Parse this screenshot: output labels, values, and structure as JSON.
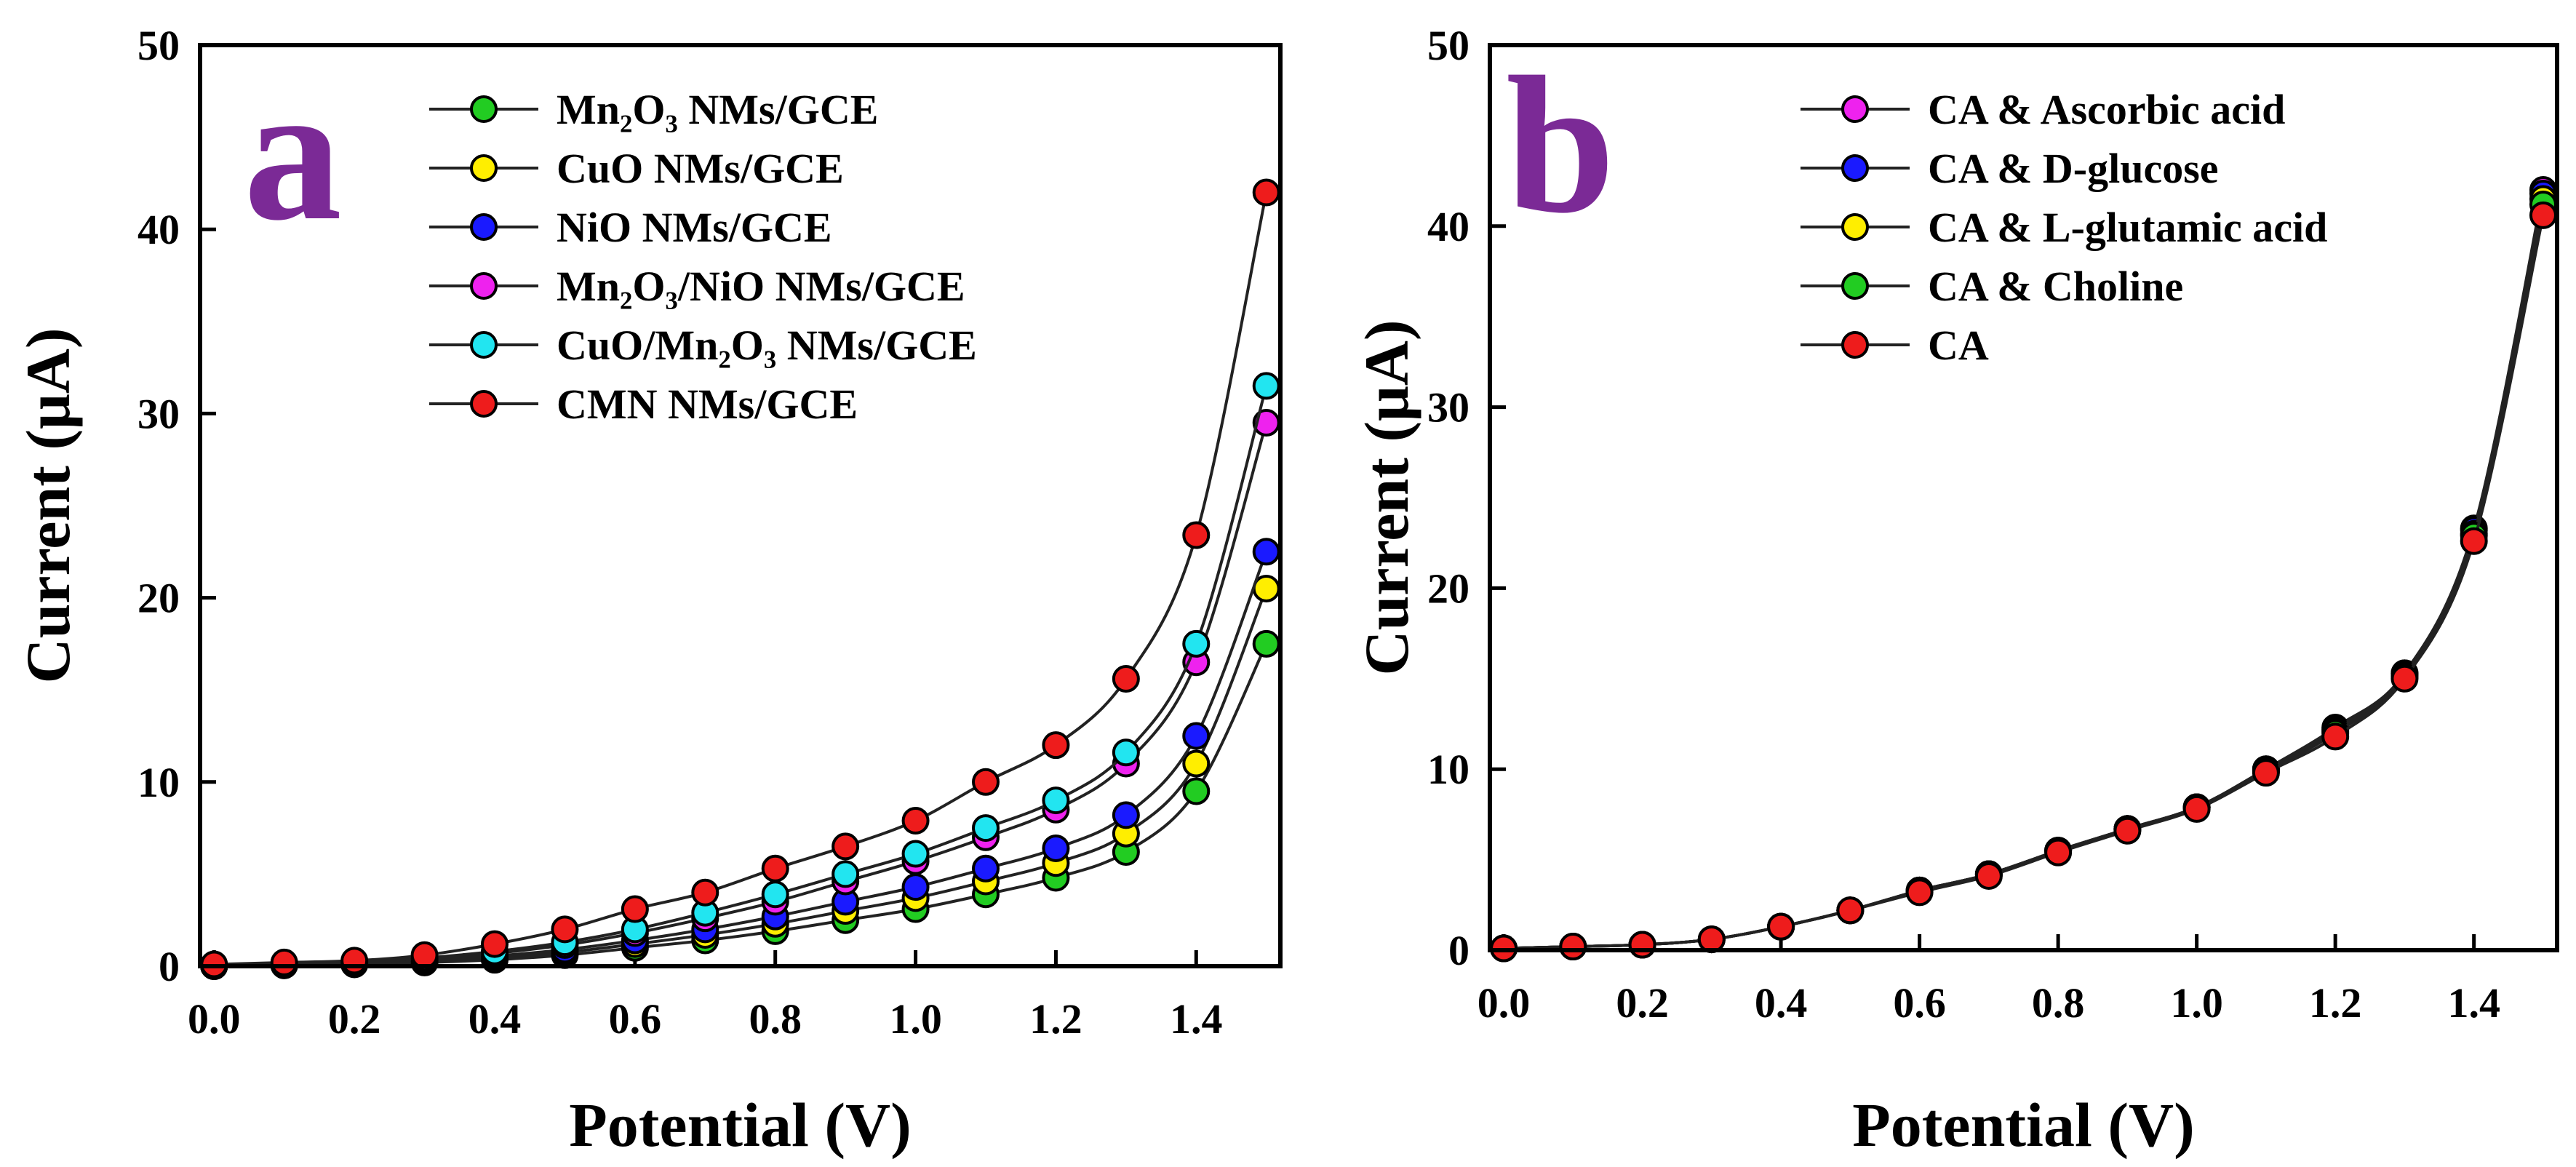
{
  "chart_data": [
    {
      "type": "line",
      "panel_label": "a",
      "xlabel": "Potential (V)",
      "ylabel": "Current (μA)",
      "xlim": [
        -0.02,
        1.52
      ],
      "ylim": [
        0,
        50
      ],
      "xticks": [
        0.0,
        0.2,
        0.4,
        0.6,
        0.8,
        1.0,
        1.2,
        1.4
      ],
      "xtick_labels": [
        "0.0",
        "0.2",
        "0.4",
        "0.6",
        "0.8",
        "1.0",
        "1.2",
        "1.4"
      ],
      "yticks": [
        0,
        10,
        20,
        30,
        40,
        50
      ],
      "ytick_labels": [
        "0",
        "10",
        "20",
        "30",
        "40",
        "50"
      ],
      "legend_position": "top-center",
      "x": [
        0.0,
        0.1,
        0.2,
        0.3,
        0.4,
        0.5,
        0.6,
        0.7,
        0.8,
        0.9,
        1.0,
        1.1,
        1.2,
        1.3,
        1.4,
        1.5
      ],
      "series": [
        {
          "name": "Mn₂O₃ NMs/GCE",
          "color": "#22cc22",
          "values": [
            0.0,
            0.05,
            0.1,
            0.2,
            0.35,
            0.6,
            1.0,
            1.4,
            1.9,
            2.5,
            3.1,
            3.9,
            4.8,
            6.2,
            9.5,
            17.5
          ]
        },
        {
          "name": "CuO NMs/GCE",
          "color": "#ffee00",
          "values": [
            0.0,
            0.05,
            0.12,
            0.25,
            0.45,
            0.75,
            1.2,
            1.7,
            2.3,
            3.0,
            3.7,
            4.6,
            5.6,
            7.2,
            11.0,
            20.5
          ]
        },
        {
          "name": "NiO NMs/GCE",
          "color": "#1a1aff",
          "values": [
            0.0,
            0.06,
            0.15,
            0.3,
            0.55,
            0.9,
            1.4,
            2.0,
            2.7,
            3.5,
            4.3,
            5.3,
            6.4,
            8.2,
            12.5,
            22.5
          ]
        },
        {
          "name": "Mn₂O₃/NiO NMs/GCE",
          "color": "#ee22ee",
          "values": [
            0.0,
            0.08,
            0.2,
            0.4,
            0.7,
            1.15,
            1.8,
            2.6,
            3.5,
            4.6,
            5.7,
            7.0,
            8.5,
            11.0,
            16.5,
            29.5
          ]
        },
        {
          "name": "CuO/Mn₂O₃ NMs/GCE",
          "color": "#22e5f0",
          "values": [
            0.0,
            0.09,
            0.22,
            0.45,
            0.8,
            1.3,
            2.0,
            2.9,
            3.9,
            5.0,
            6.1,
            7.5,
            9.0,
            11.6,
            17.5,
            31.5
          ]
        },
        {
          "name": "CMN NMs/GCE",
          "color": "#ee1c1c",
          "values": [
            0.1,
            0.2,
            0.3,
            0.6,
            1.2,
            2.0,
            3.1,
            4.0,
            5.3,
            6.5,
            7.9,
            10.0,
            12.0,
            15.6,
            23.4,
            42.0
          ]
        }
      ]
    },
    {
      "type": "line",
      "panel_label": "b",
      "xlabel": "Potential (V)",
      "ylabel": "Current (μA)",
      "xlim": [
        -0.02,
        1.52
      ],
      "ylim": [
        0,
        50
      ],
      "xticks": [
        0.0,
        0.2,
        0.4,
        0.6,
        0.8,
        1.0,
        1.2,
        1.4
      ],
      "xtick_labels": [
        "0.0",
        "0.2",
        "0.4",
        "0.6",
        "0.8",
        "1.0",
        "1.2",
        "1.4"
      ],
      "yticks": [
        0,
        10,
        20,
        30,
        40,
        50
      ],
      "ytick_labels": [
        "0",
        "10",
        "20",
        "30",
        "40",
        "50"
      ],
      "legend_position": "top-center",
      "x": [
        0.0,
        0.1,
        0.2,
        0.3,
        0.4,
        0.5,
        0.6,
        0.7,
        0.8,
        0.9,
        1.0,
        1.1,
        1.2,
        1.3,
        1.4,
        1.5
      ],
      "series": [
        {
          "name": "CA & Ascorbic acid",
          "color": "#ee22ee",
          "values": [
            0.1,
            0.2,
            0.3,
            0.6,
            1.3,
            2.2,
            3.3,
            4.2,
            5.5,
            6.7,
            7.9,
            10.0,
            12.3,
            15.3,
            23.3,
            42.0
          ]
        },
        {
          "name": "CA & D-glucose",
          "color": "#1a1aff",
          "values": [
            0.1,
            0.2,
            0.3,
            0.6,
            1.3,
            2.2,
            3.3,
            4.2,
            5.5,
            6.7,
            7.9,
            10.0,
            12.2,
            15.3,
            23.2,
            41.8
          ]
        },
        {
          "name": "CA & L-glutamic acid",
          "color": "#ffee00",
          "values": [
            0.1,
            0.2,
            0.3,
            0.6,
            1.3,
            2.2,
            3.3,
            4.2,
            5.5,
            6.7,
            7.9,
            9.9,
            12.1,
            15.2,
            23.0,
            41.5
          ]
        },
        {
          "name": "CA & Choline",
          "color": "#22cc22",
          "values": [
            0.1,
            0.2,
            0.3,
            0.6,
            1.3,
            2.2,
            3.3,
            4.2,
            5.5,
            6.7,
            7.9,
            9.9,
            12.0,
            15.1,
            22.9,
            41.2
          ]
        },
        {
          "name": "CA",
          "color": "#ee1c1c",
          "values": [
            0.1,
            0.2,
            0.3,
            0.6,
            1.3,
            2.2,
            3.2,
            4.1,
            5.4,
            6.6,
            7.8,
            9.8,
            11.8,
            15.0,
            22.6,
            40.6
          ]
        }
      ]
    }
  ]
}
